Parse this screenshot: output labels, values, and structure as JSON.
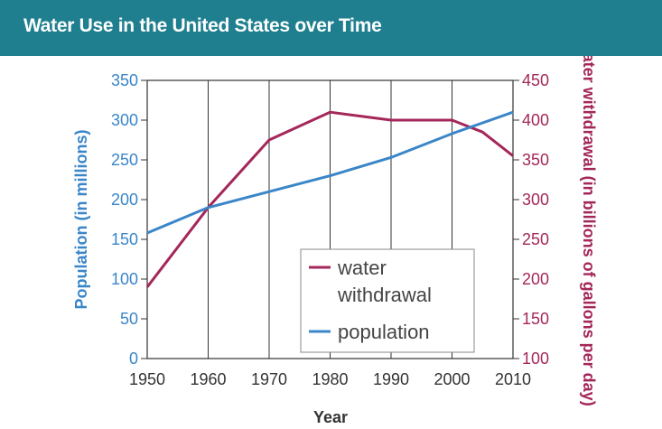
{
  "header": {
    "title": "Water Use in the United States over Time"
  },
  "colors": {
    "header_bg": "#1f7f8f",
    "population": "#3a86c8",
    "withdrawal": "#a4275a",
    "grid": "#333333"
  },
  "chart_data": {
    "type": "line",
    "title": "Water Use in the United States over Time",
    "xlabel": "Year",
    "ylabel_left": "Population (in millions)",
    "ylabel_right": "Water withdrawal (in billions of gallons per day)",
    "x_ticks": [
      1950,
      1960,
      1970,
      1980,
      1990,
      2000,
      2010
    ],
    "xlim": [
      1950,
      2010
    ],
    "ylim_left": [
      0,
      350
    ],
    "ylim_right": [
      100,
      450
    ],
    "y_ticks_left": [
      0,
      50,
      100,
      150,
      200,
      250,
      300,
      350
    ],
    "y_ticks_right": [
      100,
      150,
      200,
      250,
      300,
      350,
      400,
      450
    ],
    "grid": "vertical",
    "legend_position": "bottom-right",
    "series": [
      {
        "name": "water withdrawal",
        "axis": "right",
        "x": [
          1950,
          1960,
          1970,
          1980,
          1990,
          2000,
          2005,
          2010
        ],
        "values": [
          190,
          290,
          375,
          410,
          400,
          400,
          385,
          355
        ]
      },
      {
        "name": "population",
        "axis": "left",
        "x": [
          1950,
          1960,
          1970,
          1980,
          1990,
          2000,
          2010
        ],
        "values": [
          158,
          190,
          210,
          230,
          253,
          283,
          310
        ]
      }
    ]
  }
}
